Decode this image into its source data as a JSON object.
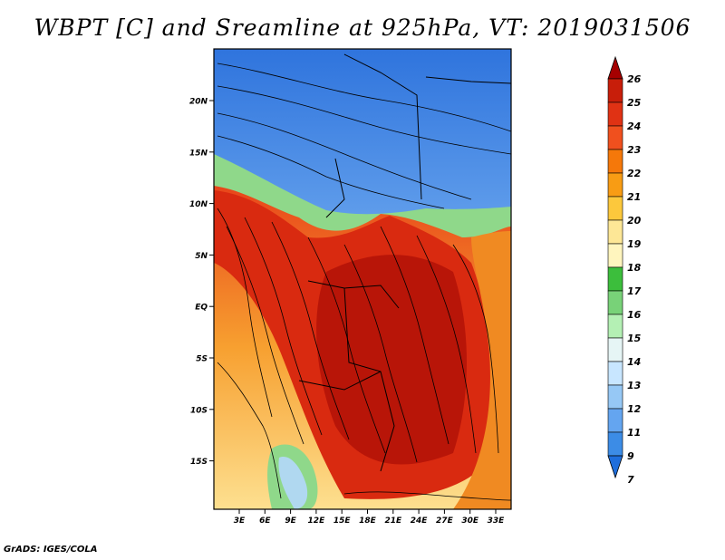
{
  "title": "WBPT [C] and Sreamline at 925hPa, VT: 2019031506",
  "credit": "GrADS: IGES/COLA",
  "map": {
    "lat_labels": [
      "20N",
      "15N",
      "10N",
      "5N",
      "EQ",
      "5S",
      "10S",
      "15S"
    ],
    "lon_labels": [
      "3E",
      "6E",
      "9E",
      "12E",
      "15E",
      "18E",
      "21E",
      "24E",
      "27E",
      "30E",
      "33E"
    ]
  },
  "colorbar": {
    "labels": [
      "26",
      "25",
      "24",
      "23",
      "22",
      "21",
      "20",
      "19",
      "18",
      "17",
      "16",
      "15",
      "14",
      "13",
      "12",
      "11",
      "9",
      "7"
    ],
    "colors": [
      "#a50000",
      "#c81e0a",
      "#e03214",
      "#f0501e",
      "#f5780a",
      "#f89c14",
      "#fcc83c",
      "#fde796",
      "#fff5be",
      "#3cbe3c",
      "#78d278",
      "#b4f0b4",
      "#e6f5f5",
      "#c8e6ff",
      "#96c8f5",
      "#64a5f0",
      "#3c8ce6",
      "#1e6edc"
    ]
  }
}
